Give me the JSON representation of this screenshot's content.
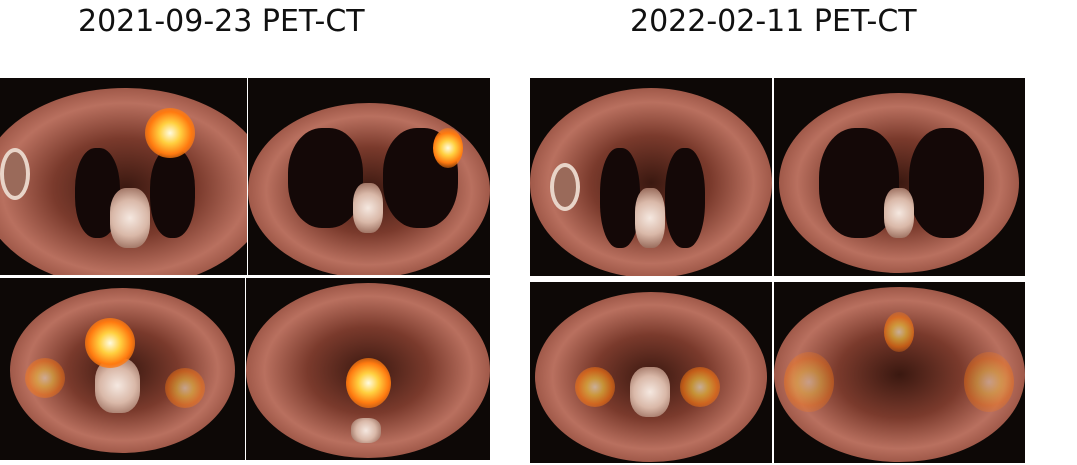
{
  "figure": {
    "left_title": "2021-09-23 PET-CT",
    "right_title": "2022-02-11 PET-CT",
    "colors": {
      "background": "#ffffff",
      "uptake_hot": "#ffd040",
      "tissue": "#b9705f"
    }
  }
}
